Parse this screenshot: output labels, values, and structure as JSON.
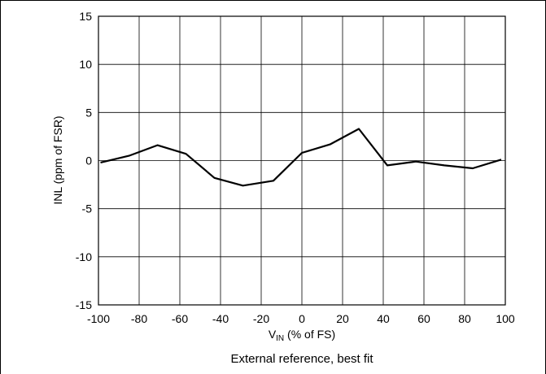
{
  "chart_data": {
    "type": "line",
    "xlabel_main": "V",
    "xlabel_sub": "IN",
    "xlabel_rest": " (% of FS)",
    "ylabel": "INL (ppm of FSR)",
    "caption": "External reference, best fit",
    "xlim": [
      -100,
      100
    ],
    "ylim": [
      -15,
      15
    ],
    "xticks": [
      -100,
      -80,
      -60,
      -40,
      -20,
      0,
      20,
      40,
      60,
      80,
      100
    ],
    "yticks": [
      -15,
      -10,
      -5,
      0,
      5,
      10,
      15
    ],
    "grid": true,
    "series": [
      {
        "x": [
          -99,
          -85,
          -71,
          -57,
          -43,
          -29,
          -14,
          0,
          14,
          28,
          42,
          56,
          70,
          84,
          98
        ],
        "y": [
          -0.2,
          0.5,
          1.6,
          0.7,
          -1.8,
          -2.6,
          -2.1,
          0.8,
          1.7,
          3.3,
          -0.5,
          -0.1,
          -0.5,
          -0.8,
          0.1
        ],
        "color": "#000000"
      }
    ]
  }
}
